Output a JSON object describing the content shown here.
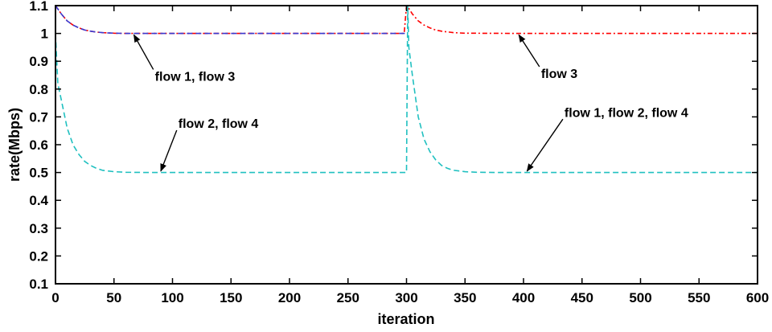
{
  "chart_data": {
    "type": "line",
    "title": "",
    "xlabel": "iteration",
    "ylabel": "rate(Mbps)",
    "xlim": [
      0,
      600
    ],
    "ylim": [
      0.1,
      1.1
    ],
    "xticks": [
      0,
      50,
      100,
      150,
      200,
      250,
      300,
      350,
      400,
      450,
      500,
      550,
      600
    ],
    "yticks": [
      "0.1",
      "0.2",
      "0.3",
      "0.4",
      "0.5",
      "0.6",
      "0.7",
      "0.8",
      "0.9",
      "1",
      "1.1"
    ],
    "grid": false,
    "legend": "none",
    "series": [
      {
        "color": "#ff0000",
        "style": "dash-dot",
        "x": [
          0,
          5,
          10,
          15,
          20,
          25,
          30,
          35,
          40,
          50,
          60,
          80,
          100,
          150,
          200,
          250,
          298,
          300,
          302,
          305,
          310,
          315,
          320,
          325,
          330,
          340,
          350,
          400,
          450,
          500,
          550,
          600
        ],
        "y": [
          1.1,
          1.07,
          1.045,
          1.03,
          1.02,
          1.012,
          1.008,
          1.005,
          1.003,
          1.001,
          1.0,
          1.0,
          1.0,
          1.0,
          1.0,
          1.0,
          1.0,
          1.1,
          1.09,
          1.07,
          1.045,
          1.03,
          1.02,
          1.012,
          1.008,
          1.003,
          1.001,
          1.0,
          1.0,
          1.0,
          1.0,
          1.0
        ]
      },
      {
        "color": "#3a3ad0",
        "style": "dashed",
        "x": [
          0,
          5,
          10,
          15,
          20,
          25,
          30,
          35,
          40,
          50,
          60,
          80,
          100,
          150,
          200,
          250,
          298,
          300
        ],
        "y": [
          1.1,
          1.07,
          1.045,
          1.03,
          1.02,
          1.012,
          1.008,
          1.005,
          1.003,
          1.001,
          1.0,
          1.0,
          1.0,
          1.0,
          1.0,
          1.0,
          1.0,
          1.0
        ]
      },
      {
        "color": "#20c0c0",
        "style": "dashed",
        "x": [
          0,
          2,
          5,
          10,
          15,
          20,
          25,
          30,
          35,
          40,
          50,
          60,
          80,
          100,
          150,
          200,
          250,
          298,
          300,
          301,
          302,
          305,
          310,
          315,
          320,
          325,
          330,
          335,
          340,
          350,
          360,
          380,
          400,
          450,
          500,
          550,
          600
        ],
        "y": [
          1.0,
          0.82,
          0.76,
          0.66,
          0.6,
          0.565,
          0.54,
          0.525,
          0.515,
          0.508,
          0.503,
          0.501,
          0.5,
          0.5,
          0.5,
          0.5,
          0.5,
          0.5,
          0.5,
          1.1,
          0.95,
          0.85,
          0.7,
          0.62,
          0.575,
          0.545,
          0.525,
          0.515,
          0.508,
          0.503,
          0.501,
          0.5,
          0.5,
          0.5,
          0.5,
          0.5,
          0.5
        ]
      }
    ],
    "annotations": [
      {
        "text": "flow 1, flow 3",
        "x": 85,
        "y": 0.83,
        "arrow_to": [
          67,
          0.995
        ]
      },
      {
        "text": "flow 3",
        "x": 415,
        "y": 0.84,
        "arrow_to": [
          396,
          0.995
        ]
      },
      {
        "text": "flow 2, flow 4",
        "x": 105,
        "y": 0.66,
        "arrow_to": [
          90,
          0.505
        ]
      },
      {
        "text": "flow 1, flow 2, flow 4",
        "x": 435,
        "y": 0.7,
        "arrow_to": [
          403,
          0.505
        ]
      }
    ]
  }
}
